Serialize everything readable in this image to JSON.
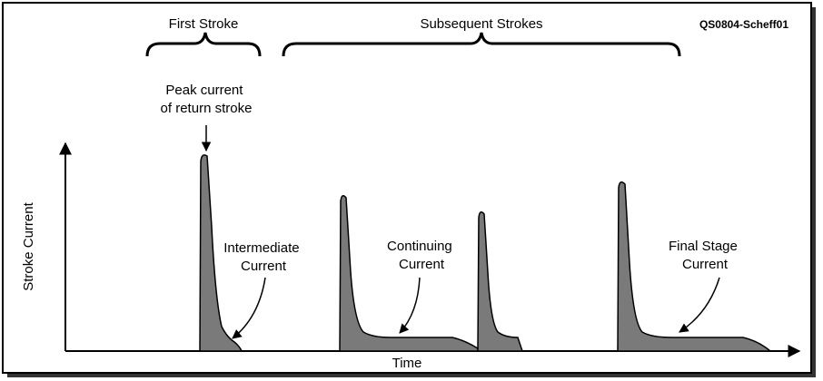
{
  "header": {
    "left_label": "First Stroke",
    "right_label": "Subsequent Strokes",
    "code": "QS0804-Scheff01"
  },
  "axes": {
    "y_label": "Stroke Current",
    "x_label": "Time"
  },
  "annotations": {
    "peak": [
      "Peak current",
      "of return stroke"
    ],
    "intermediate": [
      "Intermediate",
      "Current"
    ],
    "continuing": [
      "Continuing",
      "Current"
    ],
    "final": [
      "Final Stage",
      "Current"
    ]
  }
}
